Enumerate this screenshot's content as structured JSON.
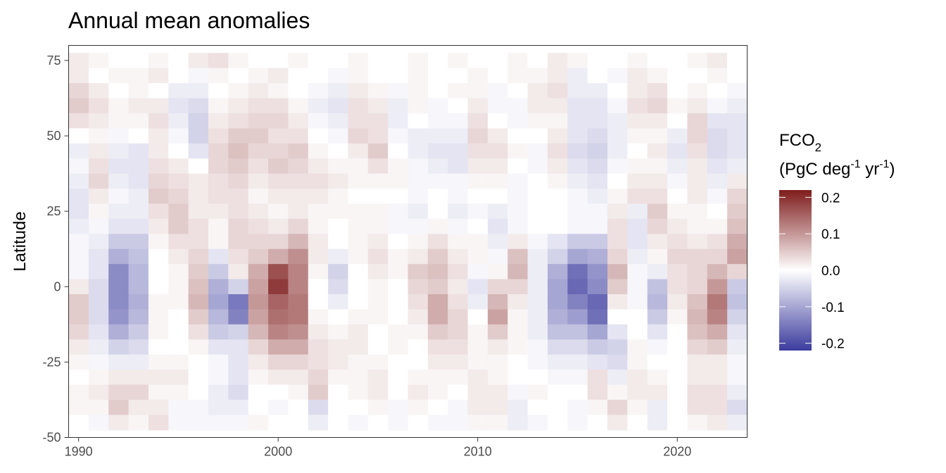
{
  "chart_data": {
    "type": "heatmap",
    "title": "Annual mean anomalies",
    "xlabel": "",
    "ylabel": "Latitude",
    "x_ticks": [
      1990,
      2000,
      2010,
      2020
    ],
    "y_ticks": [
      75,
      50,
      25,
      0,
      -25,
      -50
    ],
    "xlim": [
      1989.5,
      2023.5
    ],
    "ylim": [
      -50,
      80
    ],
    "years": [
      1990,
      1991,
      1992,
      1993,
      1994,
      1995,
      1996,
      1997,
      1998,
      1999,
      2000,
      2001,
      2002,
      2003,
      2004,
      2005,
      2006,
      2007,
      2008,
      2009,
      2010,
      2011,
      2012,
      2013,
      2014,
      2015,
      2016,
      2017,
      2018,
      2019,
      2020,
      2021,
      2022,
      2023
    ],
    "latitudes": [
      75,
      70,
      65,
      60,
      55,
      50,
      45,
      40,
      35,
      30,
      25,
      20,
      15,
      10,
      5,
      0,
      -5,
      -10,
      -15,
      -20,
      -25,
      -30,
      -35,
      -40,
      -45
    ],
    "lat_band_height": 5,
    "values": [
      [
        0.02,
        0.01,
        0.0,
        0.0,
        0.01,
        0.0,
        0.02,
        0.03,
        0.01,
        0.0,
        0.0,
        0.01,
        0.0,
        0.0,
        0.01,
        0.0,
        0.0,
        0.01,
        0.0,
        0.01,
        0.0,
        0.0,
        0.01,
        0.0,
        0.02,
        0.01,
        0.0,
        0.0,
        0.01,
        0.0,
        0.0,
        0.01,
        0.02,
        0.0
      ],
      [
        0.02,
        0.0,
        0.01,
        0.01,
        0.02,
        0.0,
        -0.01,
        0.01,
        0.0,
        0.01,
        0.02,
        0.0,
        0.0,
        -0.01,
        0.01,
        0.0,
        0.0,
        0.01,
        0.0,
        0.0,
        0.01,
        0.0,
        0.01,
        0.01,
        0.02,
        -0.02,
        0.0,
        -0.01,
        0.02,
        0.01,
        0.0,
        0.0,
        0.01,
        0.0
      ],
      [
        0.04,
        0.02,
        0.0,
        0.01,
        0.0,
        -0.02,
        -0.02,
        0.0,
        0.01,
        0.02,
        0.01,
        0.0,
        -0.01,
        -0.02,
        0.02,
        0.01,
        -0.01,
        0.01,
        0.0,
        0.01,
        0.01,
        -0.01,
        0.0,
        0.02,
        0.03,
        -0.02,
        -0.02,
        0.0,
        0.02,
        0.03,
        0.0,
        0.01,
        0.0,
        -0.01
      ],
      [
        0.05,
        0.03,
        0.01,
        0.02,
        0.02,
        -0.03,
        -0.04,
        0.01,
        0.02,
        0.03,
        0.03,
        0.01,
        -0.02,
        -0.03,
        0.03,
        0.02,
        -0.02,
        0.01,
        -0.01,
        0.0,
        0.02,
        -0.01,
        -0.01,
        0.02,
        0.02,
        -0.03,
        -0.03,
        -0.01,
        0.03,
        0.04,
        0.01,
        0.02,
        -0.01,
        -0.02
      ],
      [
        0.03,
        0.02,
        0.01,
        0.01,
        0.03,
        -0.02,
        -0.05,
        0.02,
        0.03,
        0.04,
        0.04,
        0.02,
        -0.01,
        -0.02,
        0.03,
        0.03,
        -0.02,
        0.0,
        -0.01,
        -0.01,
        0.03,
        0.0,
        -0.01,
        0.01,
        0.01,
        -0.03,
        -0.03,
        -0.02,
        0.02,
        0.02,
        0.0,
        0.04,
        -0.03,
        -0.03
      ],
      [
        0.0,
        0.01,
        -0.01,
        0.0,
        0.02,
        -0.01,
        -0.05,
        0.03,
        0.05,
        0.05,
        0.03,
        0.03,
        0.0,
        -0.01,
        0.04,
        0.03,
        -0.01,
        -0.02,
        -0.02,
        -0.02,
        0.04,
        0.02,
        0.0,
        0.0,
        0.02,
        -0.03,
        -0.04,
        -0.02,
        0.01,
        0.01,
        -0.02,
        0.04,
        -0.04,
        -0.03
      ],
      [
        -0.02,
        0.02,
        -0.02,
        -0.03,
        0.02,
        0.0,
        -0.03,
        0.04,
        0.06,
        0.04,
        0.04,
        0.05,
        0.01,
        0.0,
        0.02,
        0.05,
        0.0,
        -0.02,
        -0.03,
        -0.03,
        0.03,
        0.03,
        0.01,
        -0.01,
        0.03,
        -0.04,
        -0.05,
        -0.02,
        0.0,
        0.02,
        -0.03,
        0.03,
        -0.04,
        -0.03
      ],
      [
        -0.01,
        0.03,
        -0.03,
        -0.03,
        0.03,
        0.02,
        0.0,
        0.04,
        0.05,
        0.03,
        0.05,
        0.04,
        0.02,
        0.01,
        0.01,
        0.03,
        0.01,
        -0.01,
        -0.02,
        -0.03,
        0.02,
        0.02,
        0.0,
        -0.01,
        0.02,
        -0.03,
        -0.04,
        -0.01,
        0.01,
        0.01,
        -0.02,
        0.02,
        -0.03,
        -0.02
      ],
      [
        -0.02,
        0.04,
        -0.02,
        -0.03,
        0.04,
        0.03,
        0.02,
        0.03,
        0.04,
        0.02,
        0.03,
        0.03,
        0.03,
        0.02,
        0.01,
        0.01,
        0.01,
        -0.01,
        -0.01,
        -0.01,
        0.01,
        0.01,
        -0.01,
        0.0,
        0.01,
        -0.02,
        -0.03,
        0.0,
        0.02,
        0.02,
        -0.01,
        0.02,
        -0.02,
        0.02
      ],
      [
        -0.03,
        0.02,
        -0.01,
        -0.02,
        0.05,
        0.04,
        0.02,
        0.03,
        0.03,
        0.01,
        0.02,
        0.02,
        0.02,
        0.01,
        0.0,
        0.0,
        0.0,
        -0.01,
        0.0,
        -0.01,
        0.0,
        0.0,
        -0.01,
        0.0,
        0.0,
        -0.01,
        -0.02,
        0.01,
        0.03,
        0.03,
        0.0,
        0.02,
        -0.01,
        0.04
      ],
      [
        -0.03,
        0.01,
        -0.02,
        -0.02,
        0.03,
        0.05,
        0.02,
        0.02,
        0.03,
        0.02,
        0.01,
        0.02,
        0.01,
        0.01,
        0.01,
        0.01,
        -0.01,
        -0.02,
        0.0,
        -0.02,
        -0.01,
        -0.02,
        -0.01,
        0.0,
        0.0,
        -0.01,
        -0.01,
        0.02,
        -0.02,
        0.05,
        0.01,
        0.01,
        0.0,
        0.05
      ],
      [
        -0.02,
        -0.01,
        -0.03,
        -0.03,
        0.02,
        0.05,
        0.03,
        0.01,
        0.04,
        0.03,
        0.02,
        0.04,
        0.01,
        0.0,
        0.01,
        0.01,
        -0.01,
        -0.01,
        0.01,
        -0.01,
        0.0,
        -0.03,
        -0.01,
        0.0,
        0.0,
        -0.01,
        -0.01,
        0.03,
        -0.03,
        0.04,
        0.02,
        0.01,
        0.01,
        0.06
      ],
      [
        -0.01,
        -0.02,
        -0.06,
        -0.06,
        0.01,
        0.03,
        0.03,
        0.01,
        0.04,
        0.04,
        0.04,
        0.07,
        0.02,
        0.0,
        0.01,
        0.02,
        0.0,
        0.01,
        0.03,
        0.01,
        0.01,
        -0.02,
        0.02,
        -0.01,
        -0.03,
        -0.06,
        -0.06,
        0.03,
        -0.03,
        0.02,
        0.03,
        0.02,
        0.03,
        0.08
      ],
      [
        -0.01,
        -0.03,
        -0.09,
        -0.07,
        0.0,
        0.02,
        0.04,
        -0.03,
        0.03,
        0.05,
        0.08,
        0.11,
        0.02,
        -0.02,
        0.01,
        0.03,
        0.01,
        0.02,
        0.05,
        0.02,
        0.01,
        -0.01,
        0.06,
        -0.02,
        -0.05,
        -0.1,
        -0.09,
        0.04,
        -0.02,
        0.01,
        0.04,
        0.04,
        0.04,
        0.09
      ],
      [
        -0.01,
        -0.03,
        -0.13,
        -0.08,
        0.0,
        0.01,
        0.05,
        -0.06,
        0.02,
        0.08,
        0.17,
        0.12,
        0.01,
        -0.05,
        0.0,
        0.02,
        0.01,
        0.05,
        0.06,
        0.03,
        -0.01,
        0.01,
        0.07,
        -0.02,
        -0.09,
        -0.16,
        -0.12,
        0.07,
        -0.01,
        -0.02,
        0.03,
        0.04,
        0.07,
        0.04
      ],
      [
        0.02,
        -0.04,
        -0.13,
        -0.08,
        0.0,
        0.01,
        0.06,
        -0.09,
        -0.05,
        0.09,
        0.19,
        0.12,
        0.0,
        -0.04,
        0.0,
        0.01,
        0.0,
        0.04,
        0.05,
        0.02,
        -0.03,
        0.04,
        0.04,
        -0.02,
        -0.1,
        -0.17,
        -0.13,
        0.05,
        -0.01,
        -0.07,
        0.03,
        0.04,
        0.1,
        -0.06
      ],
      [
        0.05,
        -0.04,
        -0.13,
        -0.09,
        0.01,
        0.01,
        0.07,
        -0.1,
        -0.15,
        0.1,
        0.15,
        0.13,
        0.0,
        -0.02,
        0.0,
        0.01,
        0.0,
        0.03,
        0.08,
        0.03,
        -0.02,
        0.07,
        0.02,
        -0.02,
        -0.1,
        -0.14,
        -0.17,
        0.02,
        -0.01,
        -0.08,
        0.02,
        0.06,
        0.13,
        -0.07
      ],
      [
        0.05,
        -0.04,
        -0.12,
        -0.08,
        0.01,
        0.0,
        0.05,
        -0.08,
        -0.14,
        0.09,
        0.14,
        0.13,
        0.01,
        0.0,
        0.01,
        0.01,
        0.0,
        0.02,
        0.08,
        0.04,
        0.0,
        0.09,
        0.01,
        -0.02,
        -0.09,
        -0.11,
        -0.16,
        0.0,
        0.0,
        -0.06,
        0.01,
        0.07,
        0.12,
        -0.05
      ],
      [
        0.04,
        -0.03,
        -0.09,
        -0.06,
        0.01,
        0.0,
        0.03,
        -0.06,
        -0.05,
        0.07,
        0.12,
        0.11,
        0.02,
        0.01,
        0.02,
        0.0,
        0.01,
        0.01,
        0.05,
        0.04,
        0.01,
        0.05,
        0.01,
        -0.02,
        -0.07,
        -0.07,
        -0.1,
        -0.03,
        0.0,
        -0.03,
        0.0,
        0.06,
        0.08,
        -0.03
      ],
      [
        0.02,
        -0.02,
        -0.05,
        -0.04,
        0.0,
        0.0,
        0.01,
        -0.03,
        -0.03,
        0.04,
        0.08,
        0.08,
        0.03,
        0.02,
        0.02,
        0.0,
        0.01,
        0.0,
        0.03,
        0.03,
        0.01,
        0.02,
        0.01,
        -0.01,
        -0.04,
        -0.04,
        -0.06,
        -0.05,
        0.01,
        -0.01,
        0.0,
        0.04,
        0.05,
        -0.02
      ],
      [
        0.01,
        -0.01,
        -0.02,
        -0.02,
        0.01,
        0.01,
        0.0,
        -0.01,
        -0.03,
        0.02,
        0.04,
        0.04,
        0.03,
        0.02,
        0.01,
        0.01,
        0.0,
        0.0,
        0.02,
        0.02,
        0.01,
        0.01,
        0.0,
        -0.01,
        -0.02,
        -0.02,
        -0.03,
        -0.04,
        0.01,
        0.0,
        0.0,
        0.02,
        0.02,
        -0.01
      ],
      [
        0.0,
        0.01,
        0.02,
        0.02,
        0.02,
        0.02,
        0.0,
        -0.01,
        -0.03,
        0.01,
        0.02,
        0.02,
        0.04,
        0.01,
        0.01,
        0.02,
        0.0,
        0.01,
        0.01,
        0.01,
        0.02,
        0.01,
        0.0,
        0.0,
        -0.01,
        -0.01,
        0.03,
        -0.02,
        0.02,
        0.01,
        0.0,
        0.02,
        0.02,
        -0.01
      ],
      [
        0.01,
        0.02,
        0.04,
        0.04,
        0.01,
        0.01,
        0.0,
        -0.02,
        -0.04,
        0.0,
        0.0,
        0.01,
        0.05,
        0.0,
        0.01,
        0.02,
        0.0,
        0.02,
        0.01,
        0.0,
        0.02,
        0.02,
        -0.01,
        0.01,
        0.0,
        0.0,
        0.03,
        0.01,
        0.02,
        0.02,
        0.0,
        0.03,
        0.03,
        -0.02
      ],
      [
        0.01,
        0.01,
        0.05,
        0.02,
        0.02,
        -0.01,
        -0.01,
        -0.02,
        -0.02,
        0.0,
        -0.01,
        0.0,
        -0.04,
        0.0,
        0.0,
        0.01,
        -0.01,
        0.01,
        0.0,
        -0.01,
        0.02,
        0.02,
        -0.02,
        0.0,
        0.0,
        -0.01,
        0.01,
        0.04,
        0.01,
        -0.02,
        0.0,
        0.03,
        0.03,
        -0.04
      ],
      [
        0.0,
        -0.01,
        0.02,
        0.01,
        0.03,
        -0.01,
        -0.01,
        -0.01,
        -0.01,
        0.01,
        0.0,
        0.0,
        -0.02,
        0.0,
        -0.01,
        0.0,
        -0.01,
        0.0,
        -0.01,
        -0.01,
        0.01,
        0.01,
        -0.02,
        -0.01,
        0.0,
        -0.01,
        0.0,
        0.02,
        0.0,
        -0.02,
        0.0,
        0.01,
        0.02,
        -0.02
      ]
    ],
    "colorbar": {
      "title_main": "FCO",
      "title_sub": "2",
      "units_prefix": "(PgC deg",
      "units_exp1": "-1",
      "units_mid": " yr",
      "units_exp2": "-1",
      "units_suffix": ")",
      "range": [
        -0.22,
        0.22
      ],
      "ticks": [
        0.2,
        0.1,
        0.0,
        -0.1,
        -0.2
      ],
      "tick_labels": [
        "0.2",
        "0.1",
        "0.0",
        "-0.1",
        "-0.2"
      ],
      "color_low": "#3b3b9e",
      "color_mid": "#ffffff",
      "color_high": "#7f1c1c"
    },
    "grid": false,
    "legend_position": "right"
  }
}
